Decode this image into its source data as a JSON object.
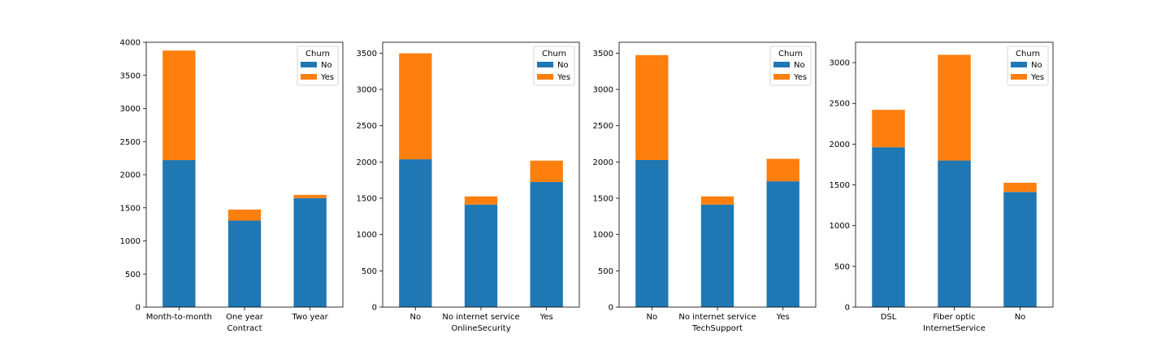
{
  "chart_data": [
    {
      "type": "bar",
      "stacked": true,
      "xlabel": "Contract",
      "categories": [
        "Month-to-month",
        "One year",
        "Two year"
      ],
      "series": [
        {
          "name": "No",
          "values": [
            2220,
            1307,
            1647
          ]
        },
        {
          "name": "Yes",
          "values": [
            1655,
            166,
            48
          ]
        }
      ],
      "ylim": [
        0,
        4000
      ],
      "yticks": [
        0,
        500,
        1000,
        1500,
        2000,
        2500,
        3000,
        3500,
        4000
      ],
      "legend": {
        "title": "Churn",
        "placement": "top-right"
      }
    },
    {
      "type": "bar",
      "stacked": true,
      "xlabel": "OnlineSecurity",
      "categories": [
        "No",
        "No internet service",
        "Yes"
      ],
      "series": [
        {
          "name": "No",
          "values": [
            2037,
            1413,
            1724
          ]
        },
        {
          "name": "Yes",
          "values": [
            1461,
            113,
            295
          ]
        }
      ],
      "ylim": [
        0,
        3650
      ],
      "yticks": [
        0,
        500,
        1000,
        1500,
        2000,
        2500,
        3000,
        3500
      ],
      "legend": {
        "title": "Churn",
        "placement": "top-right"
      }
    },
    {
      "type": "bar",
      "stacked": true,
      "xlabel": "TechSupport",
      "categories": [
        "No",
        "No internet service",
        "Yes"
      ],
      "series": [
        {
          "name": "No",
          "values": [
            2027,
            1413,
            1734
          ]
        },
        {
          "name": "Yes",
          "values": [
            1446,
            113,
            310
          ]
        }
      ],
      "ylim": [
        0,
        3650
      ],
      "yticks": [
        0,
        500,
        1000,
        1500,
        2000,
        2500,
        3000,
        3500
      ],
      "legend": {
        "title": "Churn",
        "placement": "top-right"
      }
    },
    {
      "type": "bar",
      "stacked": true,
      "xlabel": "InternetService",
      "categories": [
        "DSL",
        "Fiber optic",
        "No"
      ],
      "series": [
        {
          "name": "No",
          "values": [
            1962,
            1799,
            1413
          ]
        },
        {
          "name": "Yes",
          "values": [
            459,
            1297,
            113
          ]
        }
      ],
      "ylim": [
        0,
        3250
      ],
      "yticks": [
        0,
        500,
        1000,
        1500,
        2000,
        2500,
        3000
      ],
      "legend": {
        "title": "Churn",
        "placement": "top-right"
      }
    }
  ],
  "colors": {
    "No": "#1f77b4",
    "Yes": "#ff7f0e"
  }
}
